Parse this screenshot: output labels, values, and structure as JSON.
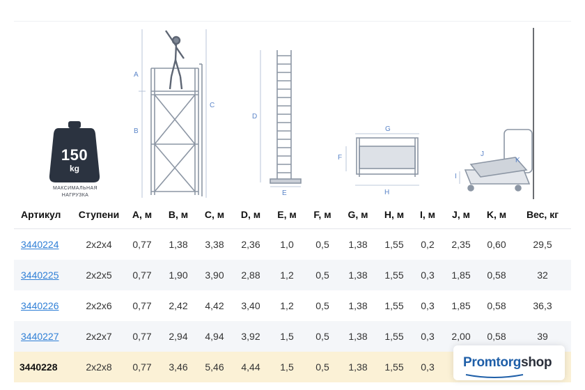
{
  "weight": {
    "value": "150",
    "unit": "kg",
    "caption_line1": "МАКСИМАЛЬНАЯ",
    "caption_line2": "НАГРУЗКА"
  },
  "dimension_letters": {
    "a": "A",
    "b": "B",
    "c": "C",
    "d": "D",
    "e": "E",
    "f": "F",
    "g": "G",
    "h": "H",
    "i": "I",
    "j": "J",
    "k": "K"
  },
  "table": {
    "headers": [
      "Артикул",
      "Ступени",
      "A, м",
      "B, м",
      "C, м",
      "D, м",
      "E, м",
      "F, м",
      "G, м",
      "H, м",
      "I, м",
      "J, м",
      "K, м",
      "Вес, кг"
    ],
    "rows": [
      [
        "3440224",
        "2x2x4",
        "0,77",
        "1,38",
        "3,38",
        "2,36",
        "1,0",
        "0,5",
        "1,38",
        "1,55",
        "0,2",
        "2,35",
        "0,60",
        "29,5"
      ],
      [
        "3440225",
        "2x2x5",
        "0,77",
        "1,90",
        "3,90",
        "2,88",
        "1,2",
        "0,5",
        "1,38",
        "1,55",
        "0,3",
        "1,85",
        "0,58",
        "32"
      ],
      [
        "3440226",
        "2x2x6",
        "0,77",
        "2,42",
        "4,42",
        "3,40",
        "1,2",
        "0,5",
        "1,38",
        "1,55",
        "0,3",
        "1,85",
        "0,58",
        "36,3"
      ],
      [
        "3440227",
        "2x2x7",
        "0,77",
        "2,94",
        "4,94",
        "3,92",
        "1,5",
        "0,5",
        "1,38",
        "1,55",
        "0,3",
        "2,00",
        "0,58",
        "39"
      ],
      [
        "3440228",
        "2x2x8",
        "0,77",
        "3,46",
        "5,46",
        "4,44",
        "1,5",
        "0,5",
        "1,38",
        "1,55",
        "0,3",
        "",
        "",
        ""
      ]
    ]
  },
  "brand": {
    "part1": "Promtorg",
    "part2": "shop"
  },
  "colors": {
    "accent_link": "#2f7fd6",
    "dim_lines": "#5a84c8",
    "weight_badge": "#2b3340",
    "highlight_row": "#fbf1d6",
    "brand_blue": "#1f5fa8"
  }
}
